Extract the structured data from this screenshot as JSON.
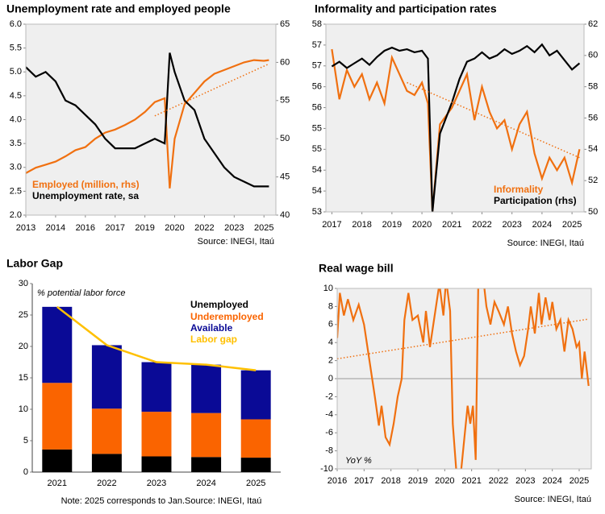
{
  "chart_data": [
    {
      "type": "line",
      "title": "Unemployment rate and employed people",
      "x": [
        2013,
        2013.5,
        2014,
        2014.5,
        2015,
        2015.5,
        2016,
        2016.5,
        2017,
        2017.5,
        2018,
        2018.5,
        2019,
        2019.5,
        2020,
        2020.25,
        2020.5,
        2021,
        2021.5,
        2022,
        2022.5,
        2023,
        2023.5,
        2024,
        2024.5,
        2025,
        2025.25
      ],
      "series": [
        {
          "name": "Employed (million, rhs)",
          "color": "#f07010",
          "axis": "y2",
          "values": [
            45.5,
            46.2,
            46.6,
            47,
            47.7,
            48.5,
            48.9,
            50,
            50.8,
            51.2,
            51.8,
            52.5,
            53.5,
            54.8,
            55.3,
            43.5,
            50,
            54.5,
            56,
            57.5,
            58.5,
            59,
            59.5,
            60,
            60.3,
            60.2,
            60.3
          ]
        },
        {
          "name": "Unemployment rate, sa",
          "color": "#000000",
          "values": [
            5.1,
            4.9,
            5.0,
            4.8,
            4.4,
            4.3,
            4.1,
            3.9,
            3.6,
            3.4,
            3.4,
            3.4,
            3.5,
            3.6,
            3.5,
            5.4,
            5.0,
            4.4,
            4.2,
            3.6,
            3.3,
            3.0,
            2.8,
            2.7,
            2.6,
            2.6,
            2.6
          ]
        },
        {
          "color": "#f07010",
          "axis": "y2",
          "style": "dotted",
          "x": [
            2019.5,
            2025.25
          ],
          "values": [
            53,
            59.8
          ]
        }
      ],
      "xlim": [
        2013,
        2025.6
      ],
      "xticks": [
        2013,
        {
          "value": 2014.5,
          "label": "2014"
        },
        2016,
        {
          "value": 2017.5,
          "label": "2017"
        },
        2019,
        {
          "value": 2020.5,
          "label": "2020"
        },
        2022,
        {
          "value": 2023.5,
          "label": "2023"
        },
        2025
      ],
      "ylim": [
        2,
        6
      ],
      "yticks": [
        {
          "value": 2,
          "label": "2.0"
        },
        2.5,
        {
          "value": 3,
          "label": "3.0"
        },
        3.5,
        {
          "value": 4,
          "label": "4.0"
        },
        4.5,
        {
          "value": 5,
          "label": "5.0"
        },
        5.5,
        {
          "value": 6,
          "label": "6.0"
        }
      ],
      "y2lim": [
        40,
        65
      ],
      "y2ticks": [
        40,
        45,
        50,
        55,
        60,
        65
      ],
      "source": "Source: INEGI, Itaú"
    },
    {
      "type": "line",
      "title": "Informality and participation rates",
      "x": [
        2017,
        2017.25,
        2017.5,
        2017.75,
        2018,
        2018.25,
        2018.5,
        2018.75,
        2019,
        2019.25,
        2019.5,
        2019.75,
        2020,
        2020.2,
        2020.35,
        2020.6,
        2021,
        2021.25,
        2021.5,
        2021.75,
        2022,
        2022.25,
        2022.5,
        2022.75,
        2023,
        2023.25,
        2023.5,
        2023.75,
        2024,
        2024.25,
        2024.5,
        2024.75,
        2025,
        2025.25
      ],
      "series": [
        {
          "name": "Informality",
          "color": "#f07010",
          "values": [
            57.1,
            55.9,
            56.6,
            56.2,
            56.5,
            55.9,
            56.3,
            55.8,
            56.9,
            56.5,
            56.1,
            56.0,
            56.3,
            55.8,
            53.2,
            55.3,
            55.7,
            56.1,
            56.5,
            55.4,
            56.2,
            55.6,
            55.2,
            55.4,
            54.7,
            55.3,
            55.6,
            54.6,
            54.0,
            54.5,
            54.2,
            54.5,
            53.9,
            54.7
          ]
        },
        {
          "name": "Participation (rhs)",
          "color": "#000000",
          "axis": "y2",
          "values": [
            59.3,
            59.6,
            59.2,
            59.5,
            59.8,
            59.4,
            59.9,
            60.3,
            60.5,
            60.3,
            60.4,
            60.2,
            60.3,
            59.8,
            50.0,
            55.0,
            57.0,
            58.5,
            59.6,
            59.8,
            60.2,
            59.8,
            60.0,
            60.4,
            60.1,
            60.3,
            60.6,
            60.2,
            60.7,
            60.0,
            60.3,
            59.7,
            59.1,
            59.5
          ]
        },
        {
          "color": "#f07010",
          "style": "dotted",
          "x": [
            2019.5,
            2025.25
          ],
          "values": [
            56.3,
            54.5
          ]
        }
      ],
      "xlim": [
        2016.8,
        2025.4
      ],
      "xticks": [
        2017,
        2018,
        2019,
        2020,
        2021,
        2022,
        2023,
        2024,
        2025
      ],
      "ylim": [
        53.2,
        57.7
      ],
      "yticks": [
        {
          "value": 53.2,
          "label": "53"
        },
        {
          "value": 53.7,
          "label": "54"
        },
        {
          "value": 54.2,
          "label": "54"
        },
        {
          "value": 54.7,
          "label": "55"
        },
        {
          "value": 55.2,
          "label": "55"
        },
        {
          "value": 55.7,
          "label": "56"
        },
        {
          "value": 56.2,
          "label": "56"
        },
        {
          "value": 56.7,
          "label": "57"
        },
        {
          "value": 57.2,
          "label": "57"
        },
        {
          "value": 57.7,
          "label": "58"
        }
      ],
      "y2lim": [
        50,
        62
      ],
      "y2ticks": [
        50,
        52,
        54,
        56,
        58,
        60,
        62
      ],
      "source": "Source: INEGI, Itaú"
    },
    {
      "type": "bar",
      "title": "Labor Gap",
      "stacked": true,
      "categories": [
        "2021",
        "2022",
        "2023",
        "2024",
        "2025"
      ],
      "series": [
        {
          "name": "Unemployed",
          "color": "#000000",
          "values": [
            3.6,
            2.9,
            2.5,
            2.4,
            2.3
          ]
        },
        {
          "name": "Underemployed",
          "color": "#fa6400",
          "values": [
            10.6,
            7.2,
            7.1,
            7.0,
            6.1
          ]
        },
        {
          "name": "Available",
          "color": "#0a0a96",
          "values": [
            12.1,
            10.1,
            7.9,
            7.7,
            7.8
          ]
        },
        {
          "name": "Labor gap",
          "color": "#ffc000",
          "kind": "line",
          "values": [
            26.3,
            20.2,
            17.5,
            17.1,
            16.2
          ]
        }
      ],
      "ylim": [
        0,
        30
      ],
      "yticks": [
        0,
        5,
        10,
        15,
        20,
        25,
        30
      ],
      "annotation": "% potential labor force",
      "source": "Note: 2025 corresponds to Jan.Source: INEGI, Itaú"
    },
    {
      "type": "line",
      "title": "Real wage bill",
      "zero_line": true,
      "x": [
        2016,
        2016.1,
        2016.25,
        2016.4,
        2016.6,
        2016.8,
        2017,
        2017.2,
        2017.4,
        2017.55,
        2017.65,
        2017.8,
        2017.95,
        2018.1,
        2018.25,
        2018.4,
        2018.5,
        2018.65,
        2018.8,
        2019,
        2019.2,
        2019.3,
        2019.45,
        2019.6,
        2019.8,
        2019.95,
        2020.05,
        2020.2,
        2020.3,
        2020.45,
        2020.6,
        2020.75,
        2020.85,
        2020.95,
        2021.05,
        2021.15,
        2021.25,
        2021.4,
        2021.55,
        2021.7,
        2021.85,
        2022,
        2022.2,
        2022.35,
        2022.5,
        2022.65,
        2022.8,
        2022.95,
        2023.1,
        2023.2,
        2023.35,
        2023.5,
        2023.6,
        2023.75,
        2023.9,
        2024,
        2024.15,
        2024.3,
        2024.45,
        2024.6,
        2024.75,
        2024.9,
        2025,
        2025.1,
        2025.2,
        2025.35
      ],
      "series": [
        {
          "color": "#f07010",
          "values": [
            4.5,
            9.5,
            7.0,
            8.8,
            6.5,
            8.2,
            6.0,
            2.0,
            -2.0,
            -5.2,
            -3.0,
            -6.5,
            -7.3,
            -5.0,
            -2.0,
            0.0,
            6.5,
            9.5,
            6.5,
            7.0,
            4.0,
            7.5,
            3.5,
            6.5,
            10.5,
            7.0,
            11,
            7.5,
            -5.0,
            -11,
            -10.5,
            -6.0,
            -3.0,
            -5.0,
            -3.0,
            -9.0,
            11,
            12,
            8.0,
            6.0,
            8.5,
            7.5,
            6.0,
            8.0,
            5.0,
            3.0,
            1.5,
            2.5,
            5.5,
            8.0,
            5.0,
            9.5,
            6.0,
            9.0,
            6.5,
            8.5,
            5.5,
            6.5,
            3.0,
            6.5,
            5.5,
            3.5,
            4.0,
            0.0,
            3.0,
            -0.8
          ]
        },
        {
          "color": "#f07010",
          "style": "dotted",
          "x": [
            2016,
            2025.35
          ],
          "values": [
            2.2,
            6.6
          ]
        }
      ],
      "xlim": [
        2016,
        2025.45
      ],
      "xticks": [
        2016,
        2017,
        2018,
        2019,
        2020,
        2021,
        2022,
        2023,
        2024,
        2025
      ],
      "ylim": [
        -10,
        10
      ],
      "yticks": [
        -10,
        -8,
        -6,
        -4,
        -2,
        0,
        2,
        4,
        6,
        8,
        10
      ],
      "annotation": "YoY %",
      "source": "Source: INEGI, Itaú"
    }
  ]
}
